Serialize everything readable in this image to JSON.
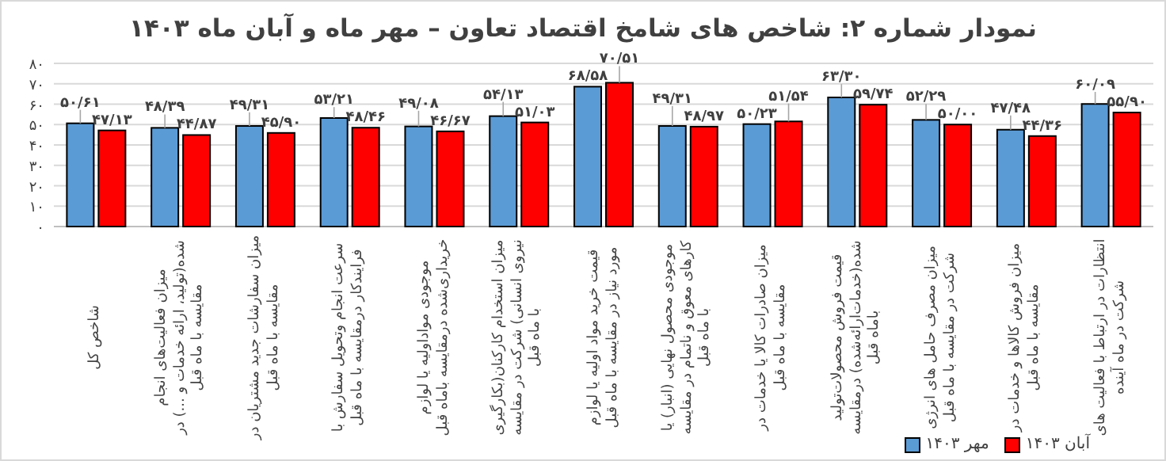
{
  "chart_data": {
    "type": "bar",
    "title": "نمودار شماره ۲: شاخص های شامخ اقتصاد تعاون – مهر ماه و آبان ماه ۱۴۰۳",
    "categories": [
      "شاخص کل",
      "میزان فعالیت‌های انجام شده(تولید، ارائه خدمات و ...) در مقایسه با ماه قبل",
      "میزان سفارشات جدید مشتریان در مقایسه با ماه قبل",
      "سرعت انجام وتحویل سفارش با فرایندکار درمقایسه با ماه قبل",
      "موجودی مواداولیه یا لوازم خریداری‌شده درمقایسه باماه قبل",
      "میزان استخدام کارکنان(بکارگیری نیروی انسانی) شرکت در مقایسه با ماه قبل",
      "قیمت خرید مواد اولیه یا لوازم مورد نیاز در مقایسه با ماه قبل",
      "موجودی محصول نهایی (انبار) یا کارهای معوق و ناتمام در مقایسه با ماه قبل",
      "میزان صادرات کالا یا خدمات در مقایسه با ماه قبل",
      "قیمت فروش محصولات‌تولید شده(خدمات‌ارائه‌شده) درمقایسه باماه قبل",
      "میزان مصرف حامل های انرژی شرکت در مقایسه با ماه قبل",
      "میزان فروش کالاها و خدمات در مقایسه با ماه قبل",
      "انتظارات در ارتباط با فعالیت های شرکت در ماه آینده"
    ],
    "series": [
      {
        "name": "مهر ۱۴۰۳",
        "color": "#5b9bd5",
        "values": [
          50.61,
          48.39,
          49.31,
          53.21,
          49.08,
          54.13,
          68.58,
          49.31,
          50.23,
          63.3,
          52.29,
          47.48,
          60.09
        ],
        "value_labels": [
          "۵۰/۶۱",
          "۴۸/۳۹",
          "۴۹/۳۱",
          "۵۳/۲۱",
          "۴۹/۰۸",
          "۵۴/۱۳",
          "۶۸/۵۸",
          "۴۹/۳۱",
          "۵۰/۲۳",
          "۶۳/۳۰",
          "۵۲/۲۹",
          "۴۷/۴۸",
          "۶۰/۰۹"
        ]
      },
      {
        "name": "آبان ۱۴۰۳",
        "color": "#ff0000",
        "values": [
          47.13,
          44.87,
          45.9,
          48.46,
          46.67,
          51.03,
          70.51,
          48.97,
          51.54,
          59.74,
          50.0,
          44.36,
          55.9
        ],
        "value_labels": [
          "۴۷/۱۳",
          "۴۴/۸۷",
          "۴۵/۹۰",
          "۴۸/۴۶",
          "۴۶/۶۷",
          "۵۱/۰۳",
          "۷۰/۵۱",
          "۴۸/۹۷",
          "۵۱/۵۴",
          "۵۹/۷۴",
          "۵۰/۰۰",
          "۴۴/۳۶",
          "۵۵/۹۰"
        ]
      }
    ],
    "ylim": [
      0,
      80
    ],
    "yticks": [
      {
        "value": 0,
        "label": "۰"
      },
      {
        "value": 10,
        "label": "۱۰"
      },
      {
        "value": 20,
        "label": "۲۰"
      },
      {
        "value": 30,
        "label": "۳۰"
      },
      {
        "value": 40,
        "label": "۴۰"
      },
      {
        "value": 50,
        "label": "۵۰"
      },
      {
        "value": 60,
        "label": "۶۰"
      },
      {
        "value": 70,
        "label": "۷۰"
      },
      {
        "value": 80,
        "label": "۸۰"
      }
    ],
    "grid": "y",
    "legend": "bottom right"
  }
}
